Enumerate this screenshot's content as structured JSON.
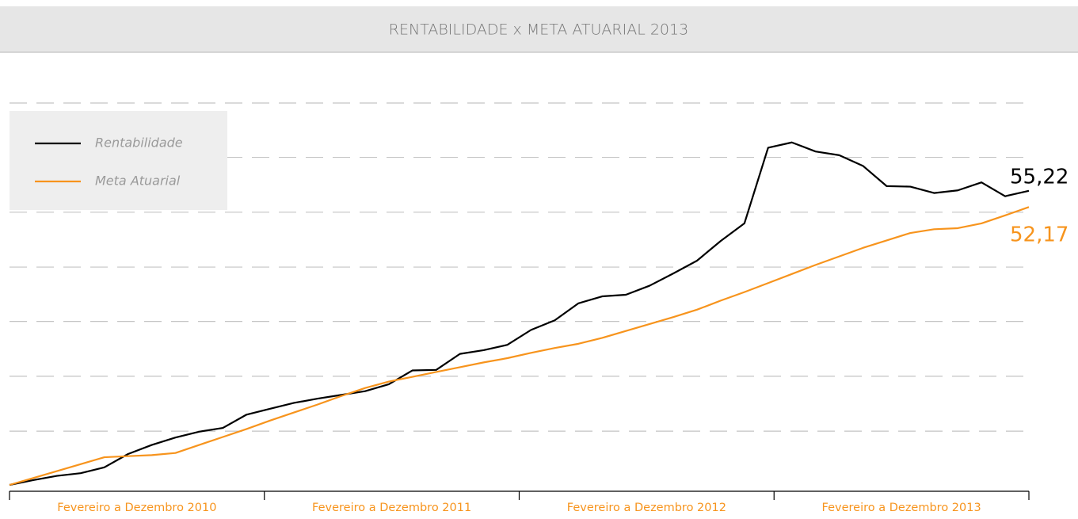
{
  "chart_data": {
    "type": "line",
    "title": "RENTABILIDADE x META ATUARIAL 2013",
    "x_labels": [
      "Fevereiro a Dezembro 2010",
      "Fevereiro a Dezembro 2011",
      "Fevereiro a Dezembro 2012",
      "Fevereiro a Dezembro 2013"
    ],
    "ylim": [
      0,
      71.7
    ],
    "yticks": [
      10.1,
      20.4,
      30.7,
      40.9,
      51.2,
      61.5,
      71.7
    ],
    "grid": true,
    "legend": "upper left",
    "series": [
      {
        "name": "Rentabilidade",
        "color": "#000000",
        "values": [
          0.0,
          0.9,
          1.7,
          2.2,
          3.3,
          5.8,
          7.5,
          8.9,
          10.0,
          10.7,
          13.2,
          14.3,
          15.4,
          16.2,
          16.9,
          17.6,
          18.9,
          21.5,
          21.6,
          24.6,
          25.3,
          26.3,
          29.1,
          30.9,
          34.1,
          35.4,
          35.7,
          37.4,
          39.7,
          42.1,
          45.8,
          49.1,
          63.3,
          64.3,
          62.6,
          61.9,
          59.9,
          56.1,
          56.0,
          54.8,
          55.3,
          56.8,
          54.2,
          55.22
        ],
        "value_labels": [
          null,
          null,
          null,
          null,
          null,
          null,
          null,
          null,
          null,
          null,
          null,
          null,
          null,
          null,
          null,
          null,
          null,
          null,
          null,
          null,
          null,
          null,
          null,
          null,
          null,
          null,
          null,
          null,
          null,
          null,
          null,
          null,
          null,
          null,
          null,
          null,
          null,
          null,
          null,
          null,
          null,
          null,
          null,
          "55,22"
        ]
      },
      {
        "name": "Meta Atuarial",
        "color": "#f7941d",
        "values": [
          0.0,
          1.3,
          2.6,
          3.9,
          5.2,
          5.4,
          5.6,
          6.0,
          7.5,
          9.0,
          10.5,
          12.1,
          13.6,
          15.1,
          16.7,
          18.2,
          19.4,
          20.3,
          21.2,
          22.1,
          23.0,
          23.8,
          24.8,
          25.7,
          26.5,
          27.6,
          28.9,
          30.2,
          31.5,
          32.9,
          34.6,
          36.2,
          37.9,
          39.6,
          41.3,
          42.9,
          44.5,
          45.9,
          47.3,
          48.0,
          48.2,
          49.1,
          50.6,
          52.17
        ],
        "value_labels": [
          null,
          null,
          null,
          null,
          null,
          null,
          null,
          null,
          null,
          null,
          null,
          null,
          null,
          null,
          null,
          null,
          null,
          null,
          null,
          null,
          null,
          null,
          null,
          null,
          null,
          null,
          null,
          null,
          null,
          null,
          null,
          null,
          null,
          null,
          null,
          null,
          null,
          null,
          null,
          null,
          null,
          null,
          null,
          "52,17"
        ]
      }
    ]
  }
}
